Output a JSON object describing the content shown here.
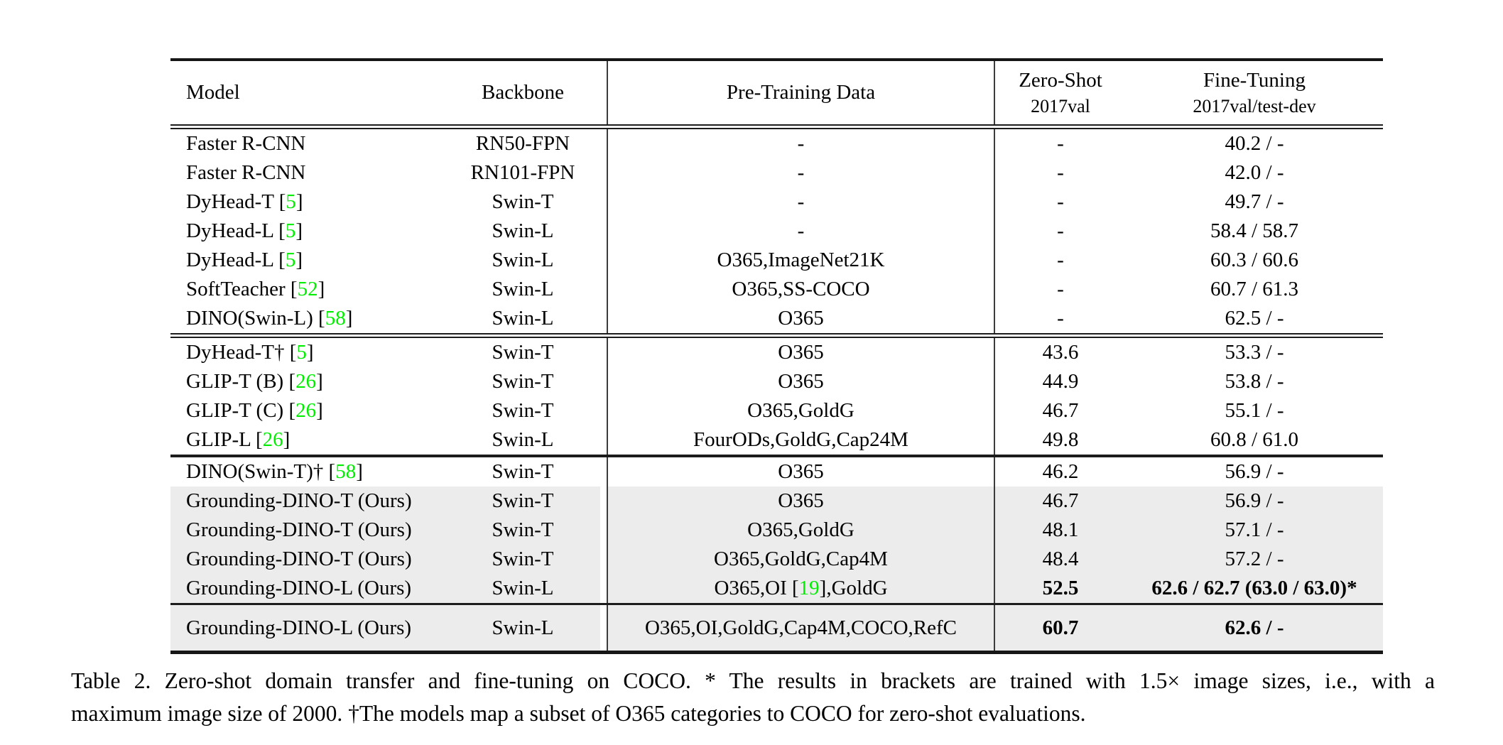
{
  "colors": {
    "cite_green": "#00ee00",
    "row_highlight": "#ececec",
    "rule": "#1c1c1c",
    "background": "#ffffff"
  },
  "table": {
    "headers": {
      "model": "Model",
      "backbone": "Backbone",
      "pretrain": "Pre-Training Data",
      "zero_shot_line1": "Zero-Shot",
      "zero_shot_line2": "2017val",
      "fine_tune_line1": "Fine-Tuning",
      "fine_tune_line2": "2017val/test-dev"
    },
    "sections": [
      {
        "rows": [
          {
            "model": [
              {
                "t": "Faster R-CNN"
              }
            ],
            "backbone": "RN50-FPN",
            "pretrain": [
              {
                "t": "-"
              }
            ],
            "zs": "-",
            "ft": "40.2 / -"
          },
          {
            "model": [
              {
                "t": "Faster R-CNN"
              }
            ],
            "backbone": "RN101-FPN",
            "pretrain": [
              {
                "t": "-"
              }
            ],
            "zs": "-",
            "ft": "42.0 / -"
          },
          {
            "model": [
              {
                "t": "DyHead-T ["
              },
              {
                "t": "5",
                "c": true
              },
              {
                "t": "]"
              }
            ],
            "backbone": "Swin-T",
            "pretrain": [
              {
                "t": "-"
              }
            ],
            "zs": "-",
            "ft": "49.7 / -"
          },
          {
            "model": [
              {
                "t": "DyHead-L ["
              },
              {
                "t": "5",
                "c": true
              },
              {
                "t": "]"
              }
            ],
            "backbone": "Swin-L",
            "pretrain": [
              {
                "t": "-"
              }
            ],
            "zs": "-",
            "ft": "58.4 / 58.7"
          },
          {
            "model": [
              {
                "t": "DyHead-L ["
              },
              {
                "t": "5",
                "c": true
              },
              {
                "t": "]"
              }
            ],
            "backbone": "Swin-L",
            "pretrain": [
              {
                "t": "O365,ImageNet21K"
              }
            ],
            "zs": "-",
            "ft": "60.3 / 60.6"
          },
          {
            "model": [
              {
                "t": "SoftTeacher ["
              },
              {
                "t": "52",
                "c": true
              },
              {
                "t": "]"
              }
            ],
            "backbone": "Swin-L",
            "pretrain": [
              {
                "t": "O365,SS-COCO"
              }
            ],
            "zs": "-",
            "ft": "60.7 / 61.3"
          },
          {
            "model": [
              {
                "t": "DINO(Swin-L) ["
              },
              {
                "t": "58",
                "c": true
              },
              {
                "t": "]"
              }
            ],
            "backbone": "Swin-L",
            "pretrain": [
              {
                "t": "O365"
              }
            ],
            "zs": "-",
            "ft": "62.5 / -"
          }
        ]
      },
      {
        "rows": [
          {
            "model": [
              {
                "t": "DyHead-T† ["
              },
              {
                "t": "5",
                "c": true
              },
              {
                "t": "]"
              }
            ],
            "backbone": "Swin-T",
            "pretrain": [
              {
                "t": "O365"
              }
            ],
            "zs": "43.6",
            "ft": "53.3 / -"
          },
          {
            "model": [
              {
                "t": "GLIP-T (B) ["
              },
              {
                "t": "26",
                "c": true
              },
              {
                "t": "]"
              }
            ],
            "backbone": "Swin-T",
            "pretrain": [
              {
                "t": "O365"
              }
            ],
            "zs": "44.9",
            "ft": "53.8 / -"
          },
          {
            "model": [
              {
                "t": "GLIP-T (C) ["
              },
              {
                "t": "26",
                "c": true
              },
              {
                "t": "]"
              }
            ],
            "backbone": "Swin-T",
            "pretrain": [
              {
                "t": "O365,GoldG"
              }
            ],
            "zs": "46.7",
            "ft": "55.1 / -"
          },
          {
            "model": [
              {
                "t": "GLIP-L ["
              },
              {
                "t": "26",
                "c": true
              },
              {
                "t": "]"
              }
            ],
            "backbone": "Swin-L",
            "pretrain": [
              {
                "t": "FourODs,GoldG,Cap24M"
              }
            ],
            "zs": "49.8",
            "ft": "60.8 / 61.0"
          }
        ]
      },
      {
        "rows": [
          {
            "model": [
              {
                "t": "DINO(Swin-T)† ["
              },
              {
                "t": "58",
                "c": true
              },
              {
                "t": "]"
              }
            ],
            "backbone": "Swin-T",
            "pretrain": [
              {
                "t": "O365"
              }
            ],
            "zs": "46.2",
            "ft": "56.9 / -"
          },
          {
            "hl": true,
            "model": [
              {
                "t": "Grounding-DINO-T (Ours)"
              }
            ],
            "backbone": "Swin-T",
            "pretrain": [
              {
                "t": "O365"
              }
            ],
            "zs": "46.7",
            "ft": "56.9 / -"
          },
          {
            "hl": true,
            "model": [
              {
                "t": "Grounding-DINO-T (Ours)"
              }
            ],
            "backbone": "Swin-T",
            "pretrain": [
              {
                "t": "O365,GoldG"
              }
            ],
            "zs": "48.1",
            "ft": "57.1 / -"
          },
          {
            "hl": true,
            "model": [
              {
                "t": "Grounding-DINO-T (Ours)"
              }
            ],
            "backbone": "Swin-T",
            "pretrain": [
              {
                "t": "O365,GoldG,Cap4M"
              }
            ],
            "zs": "48.4",
            "ft": "57.2 / -"
          },
          {
            "hl": true,
            "bold": true,
            "model": [
              {
                "t": "Grounding-DINO-L (Ours)"
              }
            ],
            "backbone": "Swin-L",
            "pretrain": [
              {
                "t": "O365,OI ["
              },
              {
                "t": "19",
                "c": true
              },
              {
                "t": "],GoldG"
              }
            ],
            "zs": "52.5",
            "ft": "62.6 / 62.7 (63.0 / 63.0)*"
          }
        ]
      },
      {
        "rows": [
          {
            "hl": true,
            "bold": true,
            "model": [
              {
                "t": "Grounding-DINO-L (Ours)"
              }
            ],
            "backbone": "Swin-L",
            "pretrain": [
              {
                "t": "O365,OI,GoldG,Cap4M,COCO,RefC"
              }
            ],
            "zs": "60.7",
            "ft": "62.6 / -"
          }
        ]
      }
    ]
  },
  "caption": {
    "line1": "Table 2.  Zero-shot domain transfer and fine-tuning on COCO. * The results in brackets are trained with 1.5× image sizes, i.e., with a",
    "line2": "maximum image size of 2000. †The models map a subset of O365 categories to COCO for zero-shot evaluations."
  }
}
